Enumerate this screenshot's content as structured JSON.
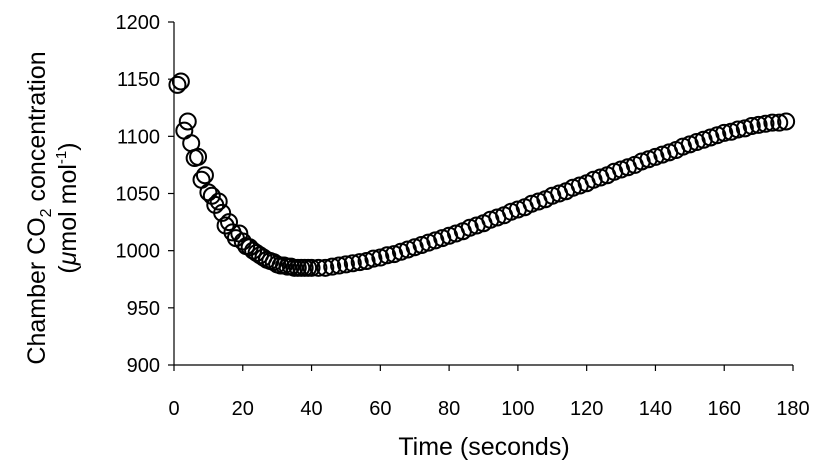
{
  "chart_data": {
    "type": "scatter",
    "xlabel": "Time (seconds)",
    "ylabel": "Chamber CO2 concentration (μmol mol-1)",
    "ylabel_parts": {
      "line1_a": "Chamber CO",
      "line1_sub": "2",
      "line1_b": " concentration",
      "line2_a": "(",
      "line2_mu": "μ",
      "line2_b": "mol mol",
      "line2_sup": "-1",
      "line2_c": ")"
    },
    "xlim": [
      0,
      180
    ],
    "ylim": [
      900,
      1200
    ],
    "x_ticks": [
      "0",
      "20",
      "40",
      "60",
      "80",
      "100",
      "120",
      "140",
      "160",
      "180"
    ],
    "y_ticks": [
      "900",
      "950",
      "1000",
      "1050",
      "1100",
      "1150",
      "1200"
    ],
    "grid": false,
    "legend": "none",
    "marker": "open-circle",
    "series": [
      {
        "x": [
          1,
          2,
          3,
          4,
          5,
          6,
          7,
          8,
          9,
          10,
          11,
          12,
          13,
          14,
          15,
          16,
          17,
          18,
          19,
          20,
          21,
          22,
          23,
          24,
          25,
          26,
          27,
          28,
          29,
          30,
          31,
          32,
          33,
          34,
          35,
          36,
          37,
          38,
          39,
          40,
          42,
          44,
          46,
          48,
          50,
          52,
          54,
          56,
          58,
          60,
          62,
          64,
          66,
          68,
          70,
          72,
          74,
          76,
          78,
          80,
          82,
          84,
          86,
          88,
          90,
          92,
          94,
          96,
          98,
          100,
          102,
          104,
          106,
          108,
          110,
          112,
          114,
          116,
          118,
          120,
          122,
          124,
          126,
          128,
          130,
          132,
          134,
          136,
          138,
          140,
          142,
          144,
          146,
          148,
          150,
          152,
          154,
          156,
          158,
          160,
          162,
          164,
          166,
          168,
          170,
          172,
          174,
          176,
          178
        ],
        "y": [
          1145,
          1148,
          1105,
          1113,
          1094,
          1081,
          1082,
          1062,
          1066,
          1051,
          1048,
          1040,
          1043,
          1033,
          1022,
          1025,
          1016,
          1011,
          1015,
          1008,
          1004,
          1003,
          1000,
          998,
          996,
          994,
          992,
          991,
          990,
          988,
          987,
          987,
          986,
          986,
          985,
          985,
          985,
          985,
          985,
          985,
          985,
          985,
          986,
          987,
          988,
          989,
          990,
          991,
          993,
          994,
          996,
          997,
          999,
          1001,
          1003,
          1005,
          1007,
          1009,
          1011,
          1013,
          1015,
          1017,
          1020,
          1022,
          1024,
          1027,
          1029,
          1031,
          1034,
          1036,
          1038,
          1041,
          1043,
          1045,
          1048,
          1050,
          1052,
          1055,
          1057,
          1059,
          1062,
          1064,
          1066,
          1069,
          1071,
          1073,
          1075,
          1078,
          1080,
          1082,
          1084,
          1086,
          1088,
          1091,
          1093,
          1095,
          1097,
          1099,
          1101,
          1103,
          1104,
          1106,
          1107,
          1109,
          1110,
          1111,
          1112,
          1112,
          1113
        ]
      }
    ]
  }
}
